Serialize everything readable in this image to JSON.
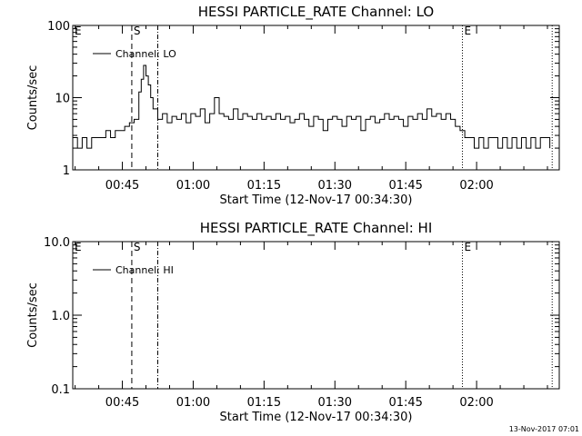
{
  "footer_timestamp": "13-Nov-2017 07:01",
  "x_tick_labels": [
    "00:45",
    "01:00",
    "01:15",
    "01:30",
    "01:45",
    "02:00"
  ],
  "chart_data": [
    {
      "type": "line",
      "title": "HESSI PARTICLE_RATE Channel: LO",
      "xlabel": "Start Time (12-Nov-17 00:34:30)",
      "ylabel": "Counts/sec",
      "y_scale": "log",
      "ylim": [
        1,
        100
      ],
      "y_tick_labels": [
        "1",
        "10",
        "100"
      ],
      "y_ticks": [
        1,
        10,
        100
      ],
      "xlim_minutes_after_start": [
        0,
        103
      ],
      "legend": {
        "placement": "top-left",
        "entries": [
          "Channel: LO"
        ]
      },
      "grid": false,
      "markers": [
        {
          "label": "E",
          "minute": 0,
          "style": "solid"
        },
        {
          "label": "S",
          "minute": 12.5,
          "style": "dashed"
        },
        {
          "label": "",
          "minute": 18,
          "style": "dashdot"
        },
        {
          "label": "E",
          "minute": 82.5,
          "style": "dotted"
        },
        {
          "label": "",
          "minute": 101.5,
          "style": "dotted"
        }
      ],
      "series": [
        {
          "name": "Channel: LO",
          "x_minutes": [
            0,
            1,
            2,
            3,
            4,
            5,
            6,
            7,
            8,
            9,
            10,
            11,
            12,
            13,
            14,
            14.5,
            15,
            15.5,
            16,
            16.5,
            17,
            18,
            19,
            20,
            21,
            22,
            23,
            24,
            25,
            26,
            27,
            28,
            29,
            30,
            31,
            32,
            33,
            34,
            35,
            36,
            37,
            38,
            39,
            40,
            41,
            42,
            43,
            44,
            45,
            46,
            47,
            48,
            49,
            50,
            51,
            52,
            53,
            54,
            55,
            56,
            57,
            58,
            59,
            60,
            61,
            62,
            63,
            64,
            65,
            66,
            67,
            68,
            69,
            70,
            71,
            72,
            73,
            74,
            75,
            76,
            77,
            78,
            79,
            80,
            81,
            82,
            83,
            84,
            85,
            86,
            87,
            88,
            89,
            90,
            91,
            92,
            93,
            94,
            95,
            96,
            97,
            98,
            99,
            100,
            101
          ],
          "values": [
            2.8,
            2,
            2.8,
            2,
            2.8,
            2.8,
            2.8,
            3.5,
            2.8,
            3.5,
            3.5,
            4,
            4.5,
            5,
            12,
            18,
            28,
            20,
            15,
            10,
            7,
            5,
            6,
            4.5,
            5.5,
            5,
            6,
            4.5,
            6,
            5.5,
            7,
            4.5,
            6,
            10,
            6,
            5.5,
            5,
            7,
            5,
            6,
            5.5,
            5,
            6,
            5,
            5.5,
            5,
            6,
            5,
            5.5,
            4.5,
            5,
            6,
            5,
            4,
            5.5,
            5,
            3.5,
            5,
            5.5,
            5,
            4,
            5.5,
            5,
            5.5,
            3.5,
            5,
            5.5,
            4.5,
            5,
            6,
            5,
            5.5,
            5,
            4,
            5.5,
            5,
            6,
            5,
            7,
            5.5,
            6,
            5,
            6,
            5,
            4,
            3.5,
            2.8,
            2.8,
            2,
            2.8,
            2,
            2.8,
            2.8,
            2,
            2.8,
            2,
            2.8,
            2,
            2.8,
            2,
            2.8,
            2,
            2.8,
            2.8,
            2
          ]
        }
      ]
    },
    {
      "type": "line",
      "title": "HESSI PARTICLE_RATE Channel: HI",
      "xlabel": "Start Time (12-Nov-17 00:34:30)",
      "ylabel": "Counts/sec",
      "y_scale": "log",
      "ylim": [
        0.1,
        10
      ],
      "y_tick_labels": [
        "0.1",
        "1.0",
        "10.0"
      ],
      "y_ticks": [
        0.1,
        1,
        10
      ],
      "xlim_minutes_after_start": [
        0,
        103
      ],
      "legend": {
        "placement": "top-left",
        "entries": [
          "Channel: HI"
        ]
      },
      "grid": false,
      "markers": [
        {
          "label": "E",
          "minute": 0,
          "style": "solid"
        },
        {
          "label": "S",
          "minute": 12.5,
          "style": "dashed"
        },
        {
          "label": "",
          "minute": 18,
          "style": "dashdot"
        },
        {
          "label": "E",
          "minute": 82.5,
          "style": "dotted"
        },
        {
          "label": "",
          "minute": 101.5,
          "style": "dotted"
        }
      ],
      "series": [
        {
          "name": "Channel: HI",
          "x_minutes": [],
          "values": []
        }
      ]
    }
  ]
}
